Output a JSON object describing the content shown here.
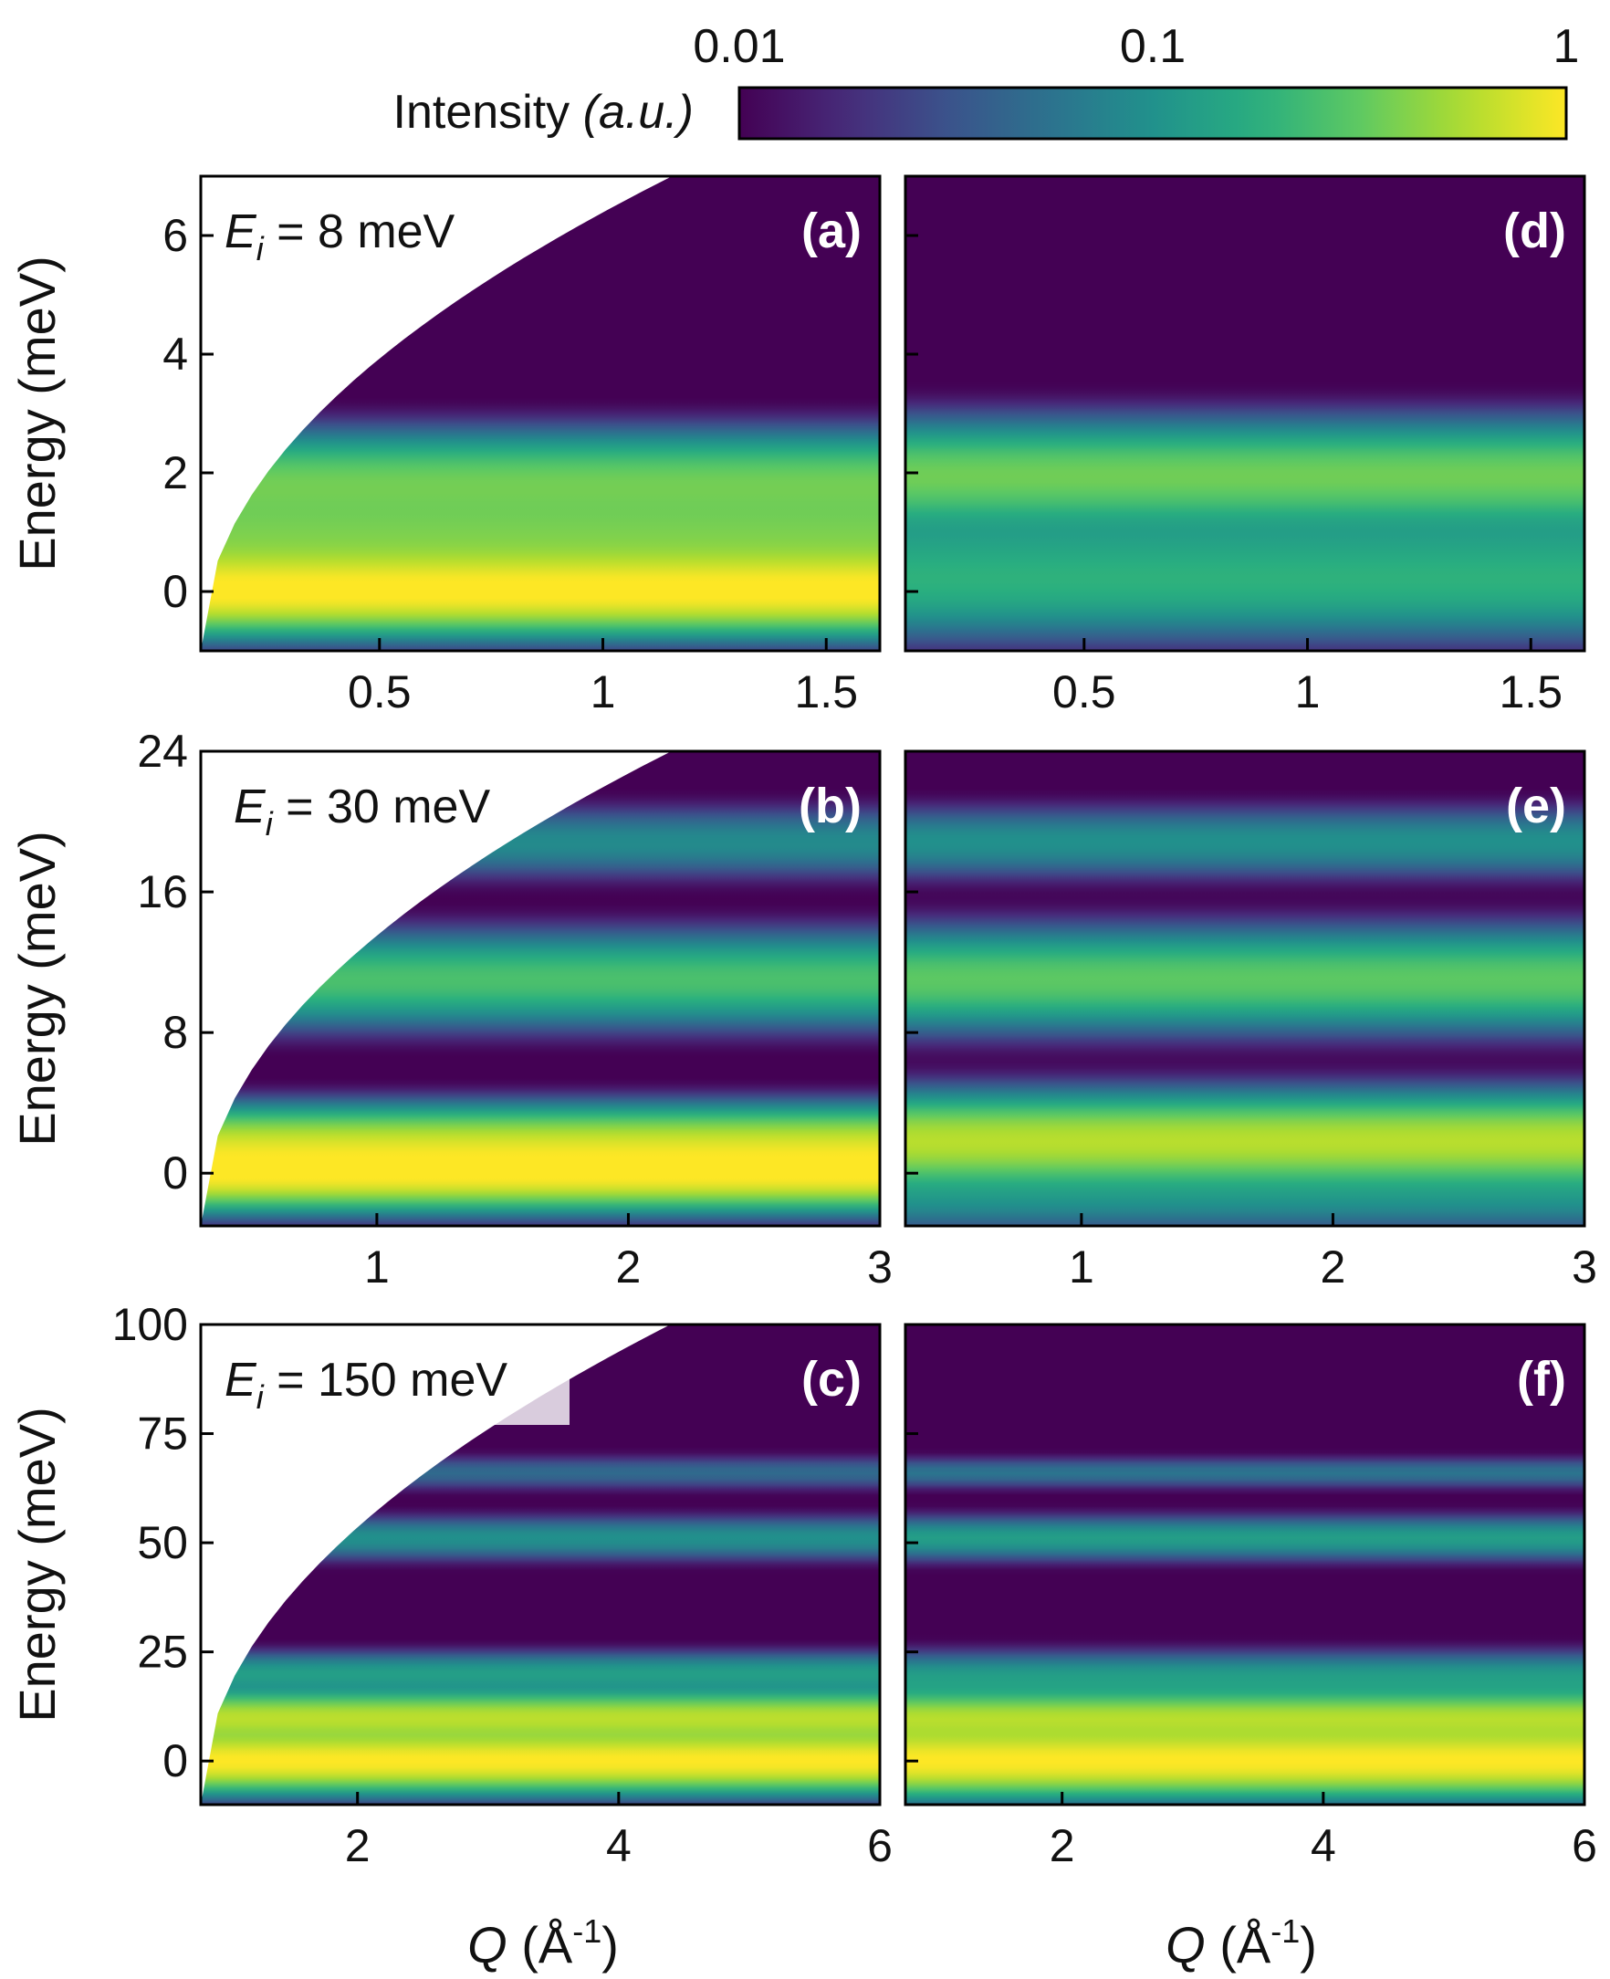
{
  "colors": {
    "colormap": [
      "#440154",
      "#472a7a",
      "#3b528b",
      "#2c728e",
      "#21918c",
      "#28ae80",
      "#5ec962",
      "#addc30",
      "#fde725"
    ],
    "background": "#440154",
    "mask": "#ffffff"
  },
  "colorbar": {
    "label_main": "Intensity ",
    "label_unit": "(a.u.)",
    "scale": "log",
    "ticks": [
      {
        "value": 0.01,
        "label": "0.01"
      },
      {
        "value": 0.1,
        "label": "0.1"
      },
      {
        "value": 1,
        "label": "1"
      }
    ],
    "range": [
      0.01,
      1
    ]
  },
  "chart_data": [
    {
      "type": "heatmap",
      "panel": "(a)",
      "annotation": {
        "main": "E",
        "sub": "i",
        "rest": " = 8 meV"
      },
      "ylabel": "Energy (meV)",
      "xlim": [
        0.1,
        1.62
      ],
      "ylim": [
        -1,
        7
      ],
      "xticks": [
        0.5,
        1,
        1.5
      ],
      "xtick_labels": [
        "0.5",
        "1",
        "1.5"
      ],
      "yticks": [
        0,
        2,
        4,
        6
      ],
      "ytick_labels": [
        "0",
        "2",
        "4",
        "6"
      ],
      "bands": [
        {
          "energy": 0,
          "intensity": 1.0,
          "width": 0.35
        },
        {
          "energy": 0.9,
          "intensity": 0.35,
          "width": 0.5
        },
        {
          "energy": 1.9,
          "intensity": 0.3,
          "width": 0.4
        }
      ],
      "kinematic_limit": true
    },
    {
      "type": "heatmap",
      "panel": "(b)",
      "annotation": {
        "main": "E",
        "sub": "i",
        "rest": " = 30 meV"
      },
      "ylabel": "Energy (meV)",
      "xlim": [
        0.3,
        3.0
      ],
      "ylim": [
        -3,
        24
      ],
      "xticks": [
        1,
        2,
        3
      ],
      "xtick_labels": [
        "1",
        "2",
        "3"
      ],
      "yticks": [
        0,
        8,
        16,
        24
      ],
      "ytick_labels": [
        "0",
        "8",
        "16",
        "24"
      ],
      "bands": [
        {
          "energy": 0,
          "intensity": 1.0,
          "width": 1.0
        },
        {
          "energy": 1.8,
          "intensity": 0.55,
          "width": 1.0
        },
        {
          "energy": 11,
          "intensity": 0.25,
          "width": 1.3
        },
        {
          "energy": 18.8,
          "intensity": 0.08,
          "width": 1.0
        }
      ],
      "kinematic_limit": true
    },
    {
      "type": "heatmap",
      "panel": "(c)",
      "annotation": {
        "main": "E",
        "sub": "i",
        "rest": " = 150 meV"
      },
      "ylabel": "Energy (meV)",
      "xlabel": "Q (Å⁻¹)",
      "xlim": [
        0.8,
        6.0
      ],
      "ylim": [
        -10,
        100
      ],
      "xticks": [
        2,
        4,
        6
      ],
      "xtick_labels": [
        "2",
        "4",
        "6"
      ],
      "yticks": [
        0,
        25,
        50,
        75,
        100
      ],
      "ytick_labels": [
        "0",
        "25",
        "50",
        "75",
        "100"
      ],
      "bands": [
        {
          "energy": 0,
          "intensity": 1.0,
          "width": 3.5
        },
        {
          "energy": 10,
          "intensity": 0.6,
          "width": 3.0
        },
        {
          "energy": 20,
          "intensity": 0.12,
          "width": 2.5
        },
        {
          "energy": 51,
          "intensity": 0.09,
          "width": 2.5
        },
        {
          "energy": 66,
          "intensity": 0.04,
          "width": 2.0
        }
      ],
      "kinematic_limit": true
    },
    {
      "type": "heatmap",
      "panel": "(d)",
      "xlim": [
        0.1,
        1.62
      ],
      "ylim": [
        -1,
        7
      ],
      "xticks": [
        0.5,
        1,
        1.5
      ],
      "xtick_labels": [
        "0.5",
        "1",
        "1.5"
      ],
      "yticks": [
        0,
        2,
        4,
        6
      ],
      "bands": [
        {
          "energy": 0,
          "intensity": 0.12,
          "width": 0.45
        },
        {
          "energy": 0.6,
          "intensity": 0.1,
          "width": 0.5
        },
        {
          "energy": 1.95,
          "intensity": 0.35,
          "width": 0.45
        }
      ],
      "kinematic_limit": false
    },
    {
      "type": "heatmap",
      "panel": "(e)",
      "xlim": [
        0.3,
        3.0
      ],
      "ylim": [
        -3,
        24
      ],
      "xticks": [
        1,
        2,
        3
      ],
      "xtick_labels": [
        "1",
        "2",
        "3"
      ],
      "yticks": [
        0,
        8,
        16,
        24
      ],
      "bands": [
        {
          "energy": 1.8,
          "intensity": 0.6,
          "width": 1.3
        },
        {
          "energy": -1.5,
          "intensity": 0.08,
          "width": 1.0
        },
        {
          "energy": 11,
          "intensity": 0.3,
          "width": 1.4
        },
        {
          "energy": 18.8,
          "intensity": 0.09,
          "width": 1.0
        }
      ],
      "kinematic_limit": false
    },
    {
      "type": "heatmap",
      "panel": "(f)",
      "xlabel": "Q (Å⁻¹)",
      "xlim": [
        0.8,
        6.0
      ],
      "ylim": [
        -10,
        100
      ],
      "xticks": [
        2,
        4,
        6
      ],
      "xtick_labels": [
        "2",
        "4",
        "6"
      ],
      "yticks": [
        0,
        25,
        50,
        75,
        100
      ],
      "bands": [
        {
          "energy": 0,
          "intensity": 1.0,
          "width": 4.0
        },
        {
          "energy": 10,
          "intensity": 0.55,
          "width": 3.0
        },
        {
          "energy": 19,
          "intensity": 0.12,
          "width": 3.0
        },
        {
          "energy": 51,
          "intensity": 0.12,
          "width": 2.5
        },
        {
          "energy": 66,
          "intensity": 0.05,
          "width": 1.8
        }
      ],
      "kinematic_limit": false
    }
  ]
}
